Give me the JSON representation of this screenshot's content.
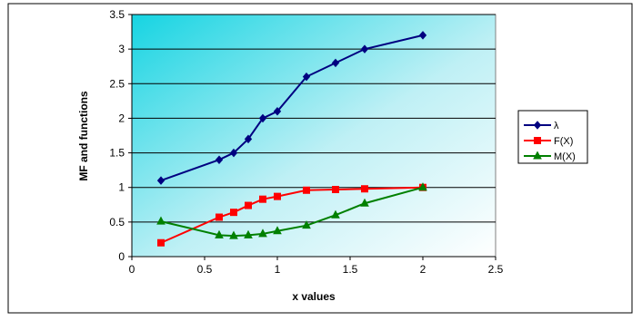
{
  "chart_data": {
    "type": "line",
    "title": "",
    "xlabel": "x values",
    "ylabel": "MF and functions",
    "xlim": [
      0,
      2.5
    ],
    "ylim": [
      0,
      3.5
    ],
    "xticks": [
      "0",
      "0.5",
      "1",
      "1.5",
      "2",
      "2.5"
    ],
    "yticks": [
      "0",
      "0.5",
      "1",
      "1.5",
      "2",
      "2.5",
      "3",
      "3.5"
    ],
    "grid": "horizontal",
    "legend_position": "right",
    "background": "gradient turquoise to white",
    "series": [
      {
        "name": "λ",
        "color": "#000080",
        "marker": "diamond",
        "x": [
          0.2,
          0.6,
          0.7,
          0.8,
          0.9,
          1.0,
          1.2,
          1.4,
          1.6,
          2.0
        ],
        "y": [
          1.1,
          1.4,
          1.5,
          1.7,
          2.0,
          2.1,
          2.6,
          2.8,
          3.0,
          3.2
        ]
      },
      {
        "name": "F(X)",
        "color": "#ff0000",
        "marker": "square",
        "x": [
          0.2,
          0.6,
          0.7,
          0.8,
          0.9,
          1.0,
          1.2,
          1.4,
          1.6,
          2.0
        ],
        "y": [
          0.2,
          0.57,
          0.64,
          0.74,
          0.83,
          0.87,
          0.96,
          0.97,
          0.98,
          1.0
        ]
      },
      {
        "name": "M(X)",
        "color": "#008000",
        "marker": "triangle",
        "x": [
          0.2,
          0.6,
          0.7,
          0.8,
          0.9,
          1.0,
          1.2,
          1.4,
          1.6,
          2.0
        ],
        "y": [
          0.51,
          0.31,
          0.3,
          0.31,
          0.33,
          0.37,
          0.45,
          0.6,
          0.77,
          1.0
        ]
      }
    ]
  }
}
